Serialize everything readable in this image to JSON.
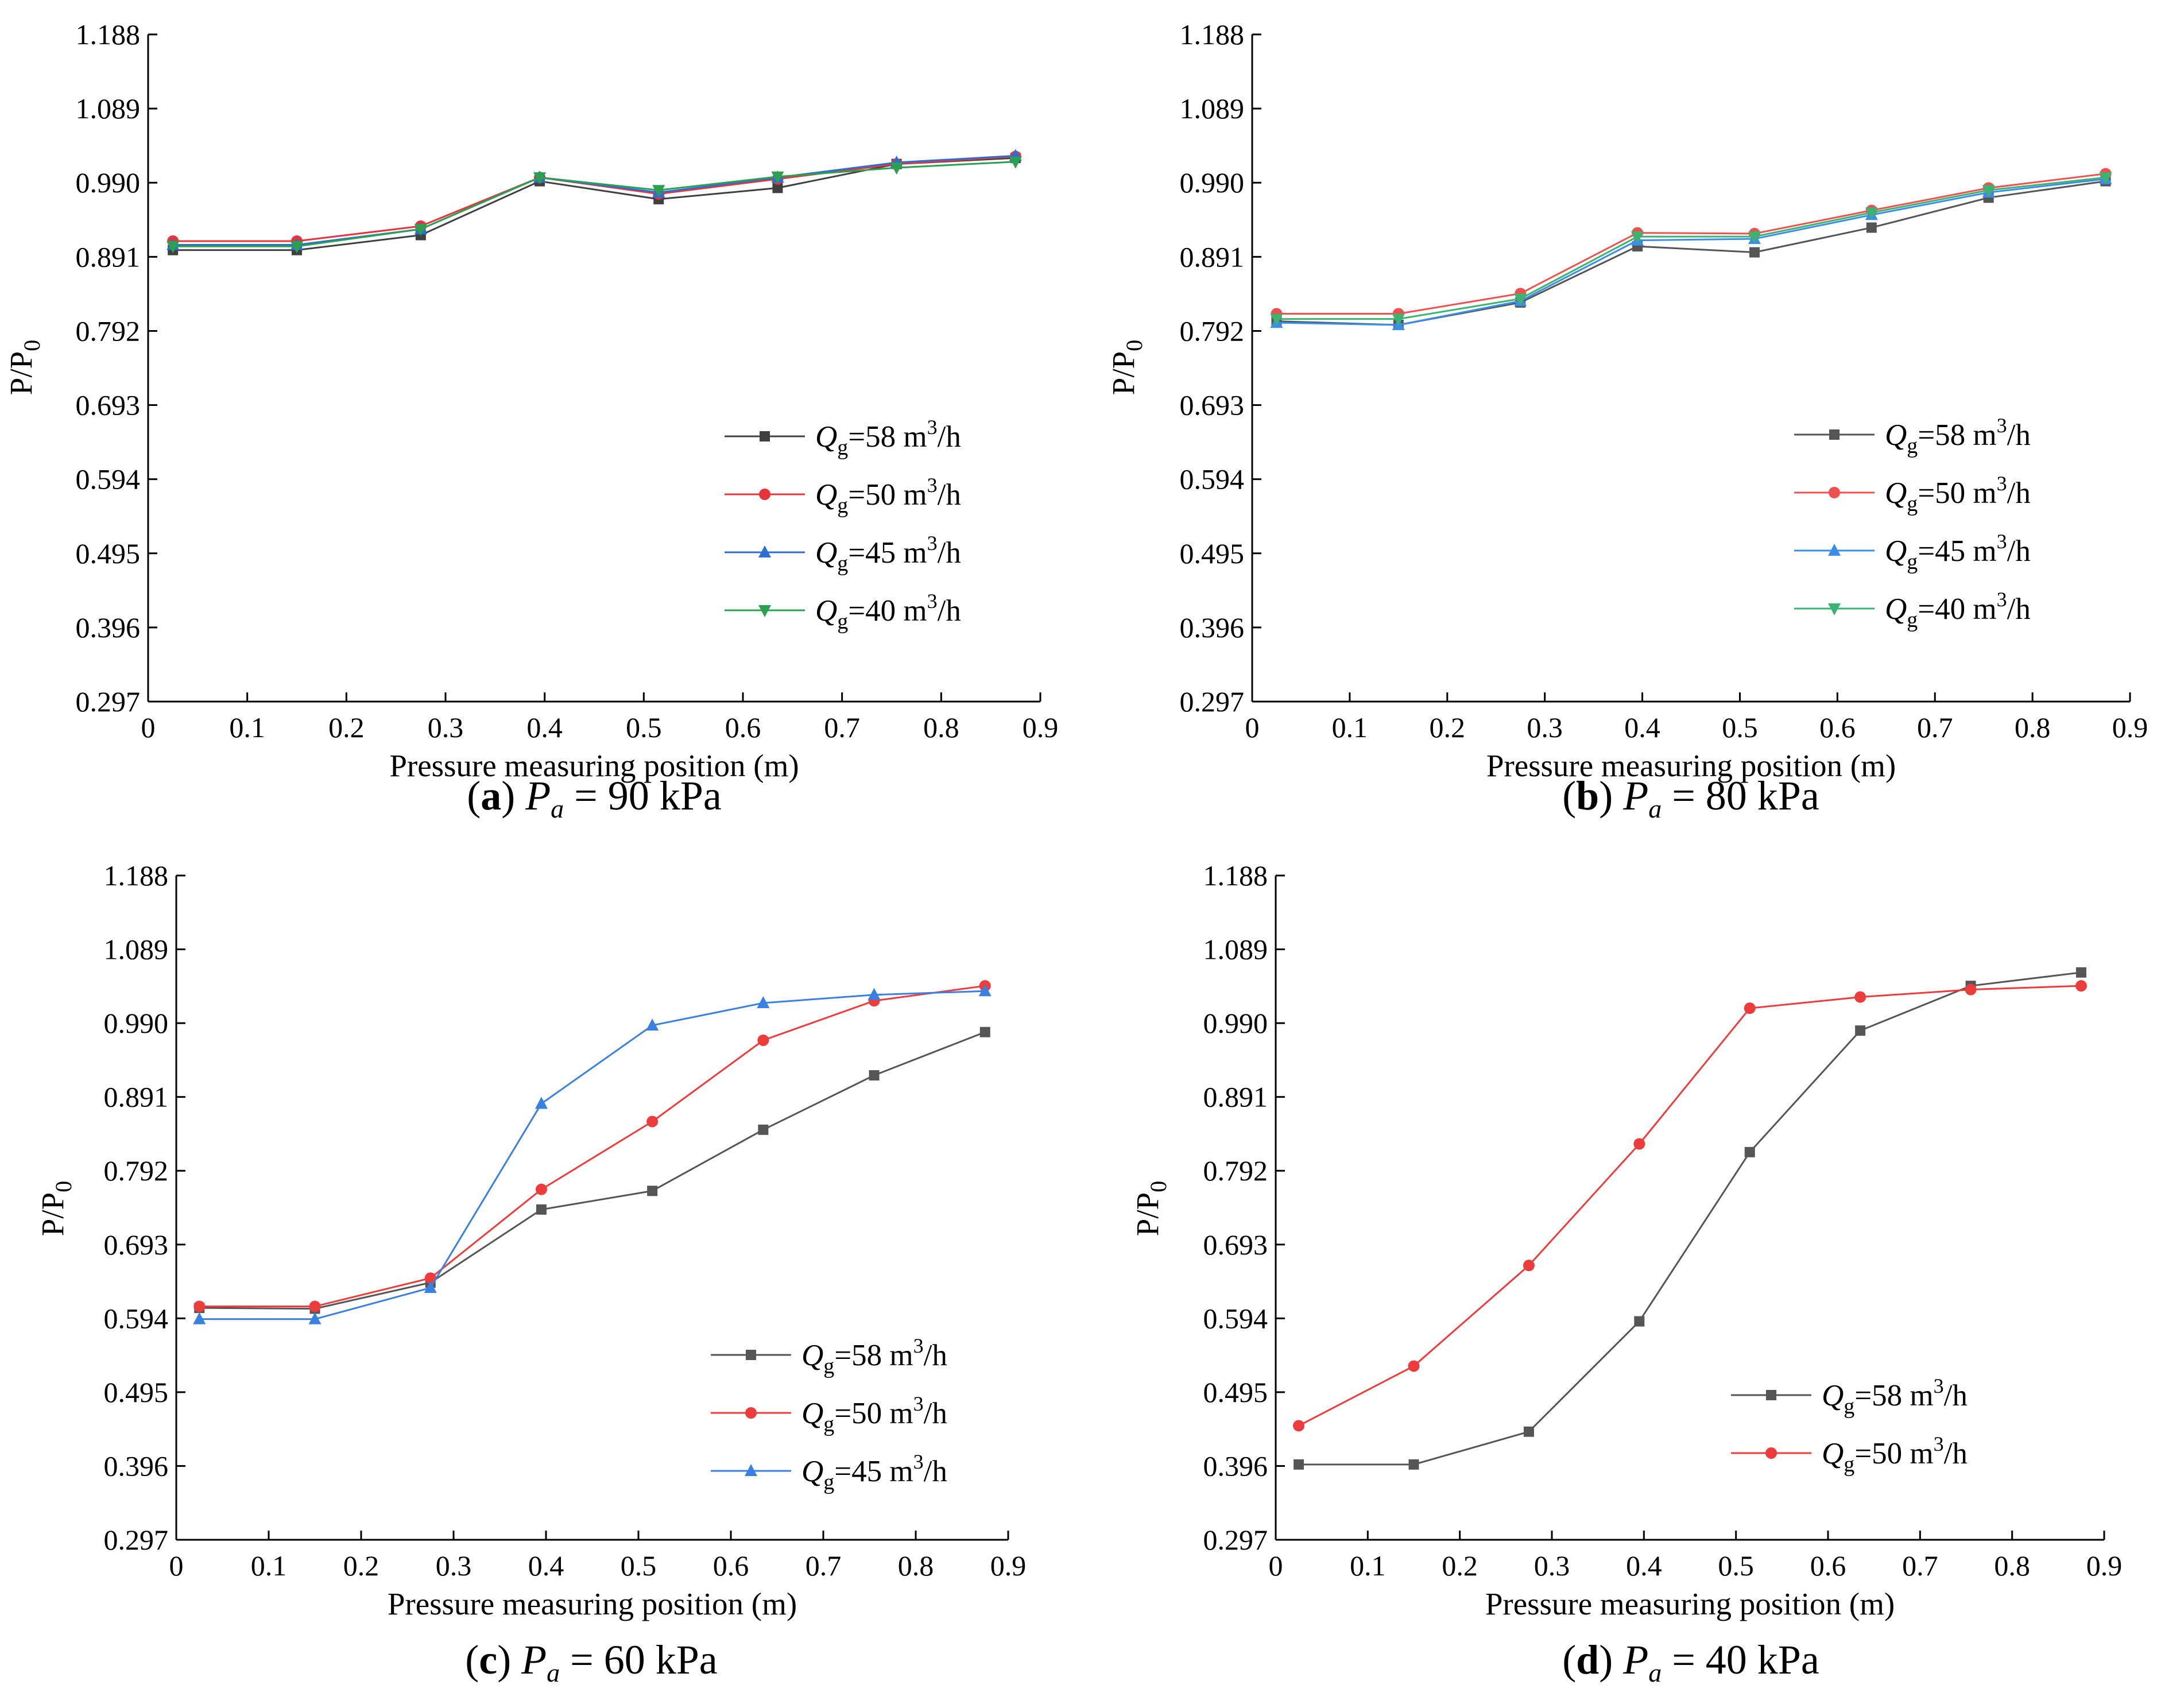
{
  "chart_data": [
    {
      "type": "line",
      "caption": {
        "letter": "a",
        "paren_open": "(",
        "paren_close": ")",
        "var": "P",
        "sub": "a",
        "rest": " = 90 kPa"
      },
      "xlabel": "Pressure measuring position (m)",
      "ylabel": {
        "main": "P/P",
        "sub": "0"
      },
      "xlim": [
        0,
        0.9
      ],
      "ylim": [
        0.297,
        1.188
      ],
      "xticks": [
        "0",
        "0.1",
        "0.2",
        "0.3",
        "0.4",
        "0.5",
        "0.6",
        "0.7",
        "0.8",
        "0.9"
      ],
      "yticks": [
        "0.297",
        "0.396",
        "0.495",
        "0.594",
        "0.693",
        "0.792",
        "0.891",
        "0.990",
        "1.089",
        "1.188"
      ],
      "x": [
        0.025,
        0.15,
        0.275,
        0.395,
        0.515,
        0.635,
        0.755,
        0.875
      ],
      "series": [
        {
          "name": {
            "q": "Q",
            "qsub": "g",
            "val": "=58 m",
            "sup": "3",
            "unit": "/h"
          },
          "color": "#404040",
          "marker": "square",
          "values": [
            0.9,
            0.9,
            0.92,
            0.992,
            0.968,
            0.983,
            1.015,
            1.023
          ]
        },
        {
          "name": {
            "q": "Q",
            "qsub": "g",
            "val": "=50 m",
            "sup": "3",
            "unit": "/h"
          },
          "color": "#e8333a",
          "marker": "circle",
          "values": [
            0.912,
            0.912,
            0.932,
            0.997,
            0.975,
            0.995,
            1.015,
            1.025
          ]
        },
        {
          "name": {
            "q": "Q",
            "qsub": "g",
            "val": "=45 m",
            "sup": "3",
            "unit": "/h"
          },
          "color": "#2b6fd6",
          "marker": "triangle-up",
          "values": [
            0.907,
            0.907,
            0.928,
            0.997,
            0.977,
            0.997,
            1.017,
            1.026
          ]
        },
        {
          "name": {
            "q": "Q",
            "qsub": "g",
            "val": "=40 m",
            "sup": "3",
            "unit": "/h"
          },
          "color": "#2aa050",
          "marker": "triangle-down",
          "values": [
            0.905,
            0.905,
            0.928,
            0.997,
            0.98,
            0.998,
            1.01,
            1.018
          ]
        }
      ]
    },
    {
      "type": "line",
      "caption": {
        "letter": "b",
        "paren_open": "(",
        "paren_close": ")",
        "var": "P",
        "sub": "a",
        "rest": " = 80 kPa"
      },
      "xlabel": "Pressure measuring position (m)",
      "ylabel": {
        "main": "P/P",
        "sub": "0"
      },
      "xlim": [
        0,
        0.9
      ],
      "ylim": [
        0.297,
        1.188
      ],
      "xticks": [
        "0",
        "0.1",
        "0.2",
        "0.3",
        "0.4",
        "0.5",
        "0.6",
        "0.7",
        "0.8",
        "0.9"
      ],
      "yticks": [
        "0.297",
        "0.396",
        "0.495",
        "0.594",
        "0.693",
        "0.792",
        "0.891",
        "0.990",
        "1.089",
        "1.188"
      ],
      "x": [
        0.025,
        0.15,
        0.275,
        0.395,
        0.515,
        0.635,
        0.755,
        0.875
      ],
      "series": [
        {
          "name": {
            "q": "Q",
            "qsub": "g",
            "val": "=58 m",
            "sup": "3",
            "unit": "/h"
          },
          "color": "#555555",
          "marker": "square",
          "values": [
            0.805,
            0.8,
            0.83,
            0.905,
            0.897,
            0.93,
            0.97,
            0.992
          ]
        },
        {
          "name": {
            "q": "Q",
            "qsub": "g",
            "val": "=50 m",
            "sup": "3",
            "unit": "/h"
          },
          "color": "#f05050",
          "marker": "circle",
          "values": [
            0.815,
            0.815,
            0.842,
            0.923,
            0.922,
            0.953,
            0.983,
            1.002
          ]
        },
        {
          "name": {
            "q": "Q",
            "qsub": "g",
            "val": "=45 m",
            "sup": "3",
            "unit": "/h"
          },
          "color": "#3a8ee6",
          "marker": "triangle-up",
          "values": [
            0.803,
            0.8,
            0.832,
            0.913,
            0.915,
            0.947,
            0.977,
            0.995
          ]
        },
        {
          "name": {
            "q": "Q",
            "qsub": "g",
            "val": "=40 m",
            "sup": "3",
            "unit": "/h"
          },
          "color": "#3cb371",
          "marker": "triangle-down",
          "values": [
            0.808,
            0.808,
            0.835,
            0.918,
            0.918,
            0.95,
            0.98,
            0.997
          ]
        }
      ]
    },
    {
      "type": "line",
      "caption": {
        "letter": "c",
        "paren_open": "(",
        "paren_close": ")",
        "var": "P",
        "sub": "a",
        "rest": " = 60 kPa"
      },
      "xlabel": "Pressure measuring position (m)",
      "ylabel": {
        "main": "P/P",
        "sub": "0"
      },
      "xlim": [
        0,
        0.9
      ],
      "ylim": [
        0.297,
        1.188
      ],
      "xticks": [
        "0",
        "0.1",
        "0.2",
        "0.3",
        "0.4",
        "0.5",
        "0.6",
        "0.7",
        "0.8",
        "0.9"
      ],
      "yticks": [
        "0.297",
        "0.396",
        "0.495",
        "0.594",
        "0.693",
        "0.792",
        "0.891",
        "0.990",
        "1.089",
        "1.188"
      ],
      "x": [
        0.025,
        0.15,
        0.275,
        0.395,
        0.515,
        0.635,
        0.755,
        0.875
      ],
      "series": [
        {
          "name": {
            "q": "Q",
            "qsub": "g",
            "val": "=58 m",
            "sup": "3",
            "unit": "/h"
          },
          "color": "#555555",
          "marker": "square",
          "values": [
            0.608,
            0.607,
            0.642,
            0.74,
            0.765,
            0.847,
            0.92,
            0.978
          ]
        },
        {
          "name": {
            "q": "Q",
            "qsub": "g",
            "val": "=50 m",
            "sup": "3",
            "unit": "/h"
          },
          "color": "#ee3b3b",
          "marker": "circle",
          "values": [
            0.61,
            0.61,
            0.648,
            0.767,
            0.858,
            0.967,
            1.02,
            1.04
          ]
        },
        {
          "name": {
            "q": "Q",
            "qsub": "g",
            "val": "=45 m",
            "sup": "3",
            "unit": "/h"
          },
          "color": "#3a80e0",
          "marker": "triangle-up",
          "values": [
            0.593,
            0.593,
            0.635,
            0.882,
            0.987,
            1.017,
            1.028,
            1.033
          ]
        }
      ]
    },
    {
      "type": "line",
      "caption": {
        "letter": "d",
        "paren_open": "(",
        "paren_close": ")",
        "var": "P",
        "sub": "a",
        "rest": " = 40 kPa"
      },
      "xlabel": "Pressure measuring position (m)",
      "ylabel": {
        "main": "P/P",
        "sub": "0"
      },
      "xlim": [
        0,
        0.9
      ],
      "ylim": [
        0.297,
        1.188
      ],
      "xticks": [
        "0",
        "0.1",
        "0.2",
        "0.3",
        "0.4",
        "0.5",
        "0.6",
        "0.7",
        "0.8",
        "0.9"
      ],
      "yticks": [
        "0.297",
        "0.396",
        "0.495",
        "0.594",
        "0.693",
        "0.792",
        "0.891",
        "0.990",
        "1.089",
        "1.188"
      ],
      "x": [
        0.025,
        0.15,
        0.275,
        0.395,
        0.515,
        0.635,
        0.755,
        0.875
      ],
      "series": [
        {
          "name": {
            "q": "Q",
            "qsub": "g",
            "val": "=58 m",
            "sup": "3",
            "unit": "/h"
          },
          "color": "#555555",
          "marker": "square",
          "values": [
            0.398,
            0.398,
            0.442,
            0.59,
            0.817,
            0.98,
            1.04,
            1.058
          ]
        },
        {
          "name": {
            "q": "Q",
            "qsub": "g",
            "val": "=50 m",
            "sup": "3",
            "unit": "/h"
          },
          "color": "#ee3b3b",
          "marker": "circle",
          "values": [
            0.45,
            0.53,
            0.665,
            0.828,
            1.01,
            1.025,
            1.035,
            1.04
          ]
        }
      ]
    }
  ]
}
